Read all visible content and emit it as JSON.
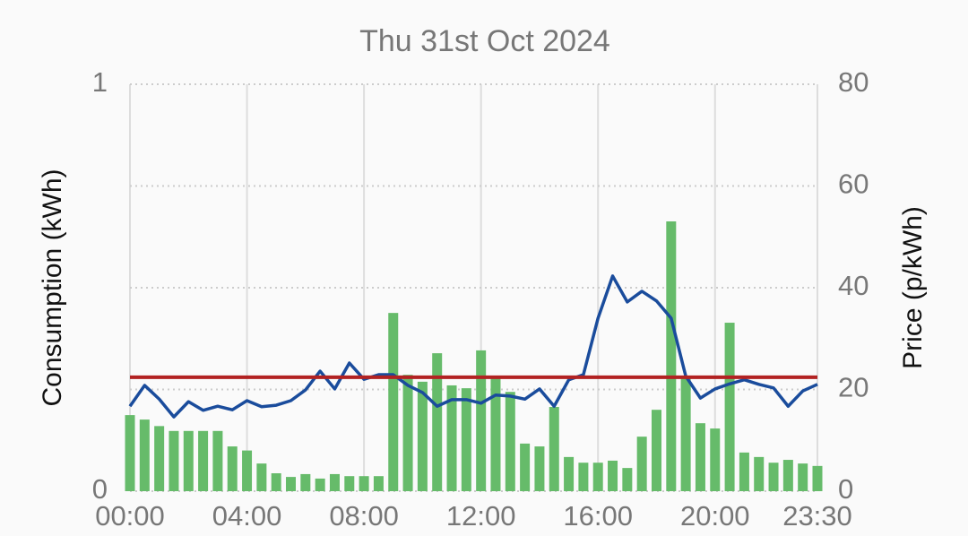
{
  "chart_data": {
    "type": "bar_line",
    "title": "Thu 31st Oct 2024",
    "y_label": "Consumption (kWh)",
    "y2_label": "Price (p/kWh)",
    "categories": [
      "00:00",
      null,
      null,
      null,
      null,
      null,
      null,
      null,
      "04:00",
      null,
      null,
      null,
      null,
      null,
      null,
      null,
      "08:00",
      null,
      null,
      null,
      null,
      null,
      null,
      null,
      "12:00",
      null,
      null,
      null,
      null,
      null,
      null,
      null,
      "16:00",
      null,
      null,
      null,
      null,
      null,
      null,
      null,
      "20:00",
      null,
      null,
      null,
      null,
      null,
      null,
      "23:30"
    ],
    "ylim": [
      0,
      1
    ],
    "yticks": [
      0,
      1
    ],
    "y2lim": [
      0,
      80
    ],
    "y2ticks": [
      0,
      20,
      40,
      60,
      80
    ],
    "grid": true,
    "series": [
      {
        "type": "bar",
        "color": "#66bb6a",
        "values": [
          0.187,
          0.176,
          0.16,
          0.148,
          0.148,
          0.148,
          0.148,
          0.11,
          0.1,
          0.068,
          0.044,
          0.035,
          0.042,
          0.031,
          0.042,
          0.037,
          0.037,
          0.037,
          0.438,
          0.286,
          0.269,
          0.339,
          0.26,
          0.253,
          0.346,
          0.282,
          0.244,
          0.117,
          0.11,
          0.207,
          0.084,
          0.07,
          0.07,
          0.075,
          0.057,
          0.134,
          0.2,
          0.663,
          0.278,
          0.167,
          0.154,
          0.414,
          0.095,
          0.084,
          0.07,
          0.077,
          0.068,
          0.062
        ]
      },
      {
        "type": "line",
        "axis": "y2",
        "color": "#1a4c9c",
        "values": [
          16.7,
          20.8,
          18.1,
          14.6,
          17.6,
          15.9,
          16.7,
          16,
          17.8,
          16.6,
          16.9,
          17.8,
          19.9,
          23.6,
          20.1,
          25.2,
          22,
          22.9,
          22.9,
          20.8,
          19.4,
          16.7,
          18,
          18,
          17.3,
          18.9,
          18.7,
          18.1,
          20.1,
          16.7,
          21.9,
          22.9,
          34,
          42.3,
          37.2,
          39.3,
          37.4,
          34,
          22.6,
          18.3,
          20.1,
          21.1,
          21.9,
          21,
          20.3,
          16.7,
          19.7,
          21
        ]
      }
    ],
    "reference_line": {
      "axis": "y2",
      "value": 22.4,
      "color": "#b22222"
    }
  }
}
